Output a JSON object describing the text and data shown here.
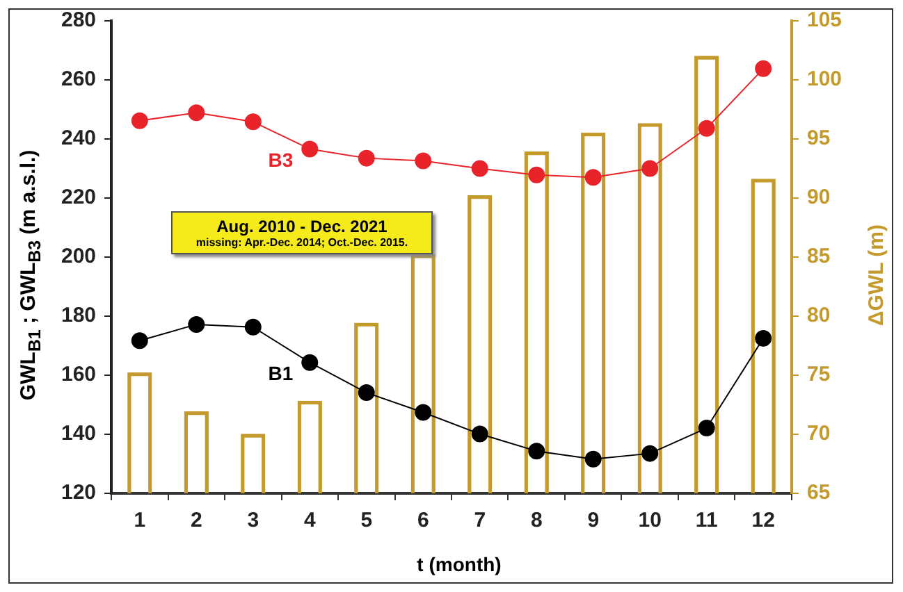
{
  "chart_data": {
    "type": "bar",
    "xlabel": "t (month)",
    "ylabel": "GWL$_{B1}$ ; GWL$_{B3}$ (m a.s.l.)",
    "y2label": "ΔGWL (m)",
    "x": [
      1,
      2,
      3,
      4,
      5,
      6,
      7,
      8,
      9,
      10,
      11,
      12
    ],
    "xlim": [
      0.5,
      12.5
    ],
    "xticks": [
      {
        "value": 0.5,
        "label": null
      },
      1,
      {
        "value": 1.5,
        "label": null
      },
      2,
      {
        "value": 2.5,
        "label": null
      },
      3,
      {
        "value": 3.5,
        "label": null
      },
      4,
      {
        "value": 4.5,
        "label": null
      },
      5,
      {
        "value": 5.5,
        "label": null
      },
      6,
      {
        "value": 6.5,
        "label": null
      },
      7,
      {
        "value": 7.5,
        "label": null
      },
      8,
      {
        "value": 8.5,
        "label": null
      },
      9,
      {
        "value": 9.5,
        "label": null
      },
      10,
      {
        "value": 10.5,
        "label": null
      },
      11,
      {
        "value": 11.5,
        "label": null
      },
      12,
      {
        "value": 12.5,
        "label": null
      }
    ],
    "series": [
      {
        "type": "bar",
        "axis": "y2",
        "color": "#c49a2c",
        "values": [
          75.2,
          71.9,
          70.0,
          72.8,
          79.4,
          85.2,
          90.2,
          93.9,
          95.5,
          96.3,
          102.0,
          91.6
        ]
      },
      {
        "type": "line",
        "name": "B3",
        "color": "#e8232a",
        "values": [
          246.2,
          248.9,
          245.8,
          236.6,
          233.5,
          232.6,
          230.0,
          227.8,
          227.0,
          230.0,
          243.6,
          263.8
        ]
      },
      {
        "type": "line",
        "name": "B1",
        "color": "#000000",
        "values": [
          171.7,
          177.2,
          176.3,
          164.3,
          154.1,
          147.4,
          140.1,
          134.3,
          131.6,
          133.5,
          142.1,
          172.5
        ]
      }
    ],
    "ylim": [
      120,
      280
    ],
    "yticks": [
      120,
      140,
      160,
      180,
      200,
      220,
      240,
      260,
      280
    ],
    "y2lim": [
      65,
      105
    ],
    "y2ticks": [
      65,
      70,
      75,
      80,
      85,
      90,
      95,
      100,
      105
    ],
    "marker": "circle",
    "line_style": "solid",
    "grid": false,
    "annotations": [
      "Aug. 2010 - Dec. 2021",
      "missing: Apr.-Dec. 2014; Oct.-Dec. 2015."
    ]
  }
}
